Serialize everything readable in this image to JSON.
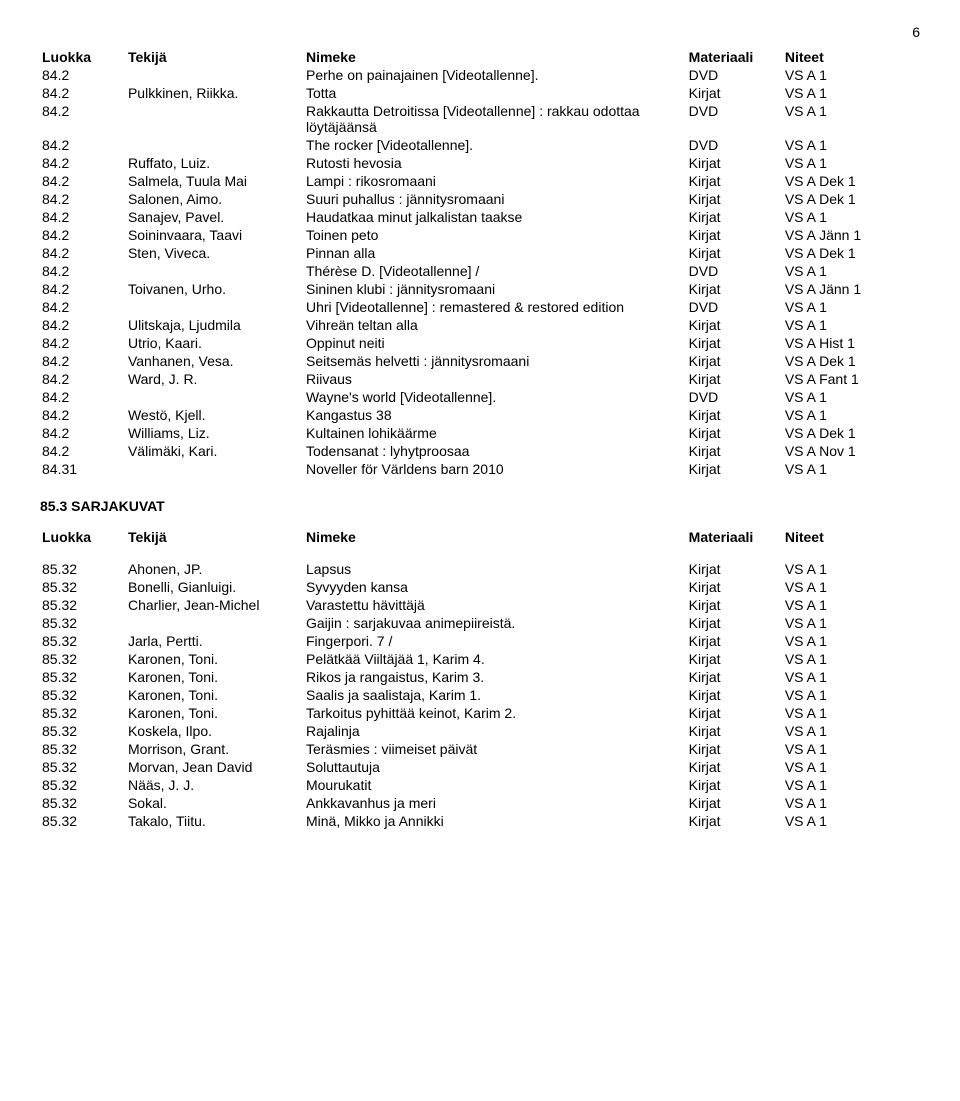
{
  "page_number": "6",
  "headers": {
    "class": "Luokka",
    "author": "Tekijä",
    "title": "Nimeke",
    "material": "Materiaali",
    "notes": "Niteet"
  },
  "table1": [
    [
      "84.2",
      "",
      "Perhe on painajainen [Videotallenne].",
      "DVD",
      "VS A 1"
    ],
    [
      "84.2",
      "Pulkkinen, Riikka.",
      "Totta",
      "Kirjat",
      "VS A 1"
    ],
    [
      "84.2",
      "",
      "Rakkautta Detroitissa [Videotallenne] : rakkau odottaa löytäjäänsä",
      "DVD",
      "VS A 1"
    ],
    [
      "84.2",
      "",
      "The rocker [Videotallenne].",
      "DVD",
      "VS A 1"
    ],
    [
      "84.2",
      "Ruffato, Luiz.",
      "Rutosti hevosia",
      "Kirjat",
      "VS A 1"
    ],
    [
      "84.2",
      "Salmela, Tuula Mai",
      "Lampi : rikosromaani",
      "Kirjat",
      "VS A Dek 1"
    ],
    [
      "84.2",
      "Salonen, Aimo.",
      "Suuri puhallus : jännitysromaani",
      "Kirjat",
      "VS A Dek 1"
    ],
    [
      "84.2",
      "Sanajev, Pavel.",
      "Haudatkaa minut jalkalistan taakse",
      "Kirjat",
      "VS A 1"
    ],
    [
      "84.2",
      "Soininvaara, Taavi",
      "Toinen peto",
      "Kirjat",
      "VS A Jänn 1"
    ],
    [
      "84.2",
      "Sten, Viveca.",
      "Pinnan alla",
      "Kirjat",
      "VS A Dek 1"
    ],
    [
      "84.2",
      "",
      "Thérèse D. [Videotallenne] /",
      "DVD",
      "VS A 1"
    ],
    [
      "84.2",
      "Toivanen, Urho.",
      "Sininen klubi : jännitysromaani",
      "Kirjat",
      "VS A Jänn 1"
    ],
    [
      "84.2",
      "",
      "Uhri [Videotallenne] : remastered & restored edition",
      "DVD",
      "VS A 1"
    ],
    [
      "84.2",
      "Ulitskaja, Ljudmila",
      "Vihreän teltan alla",
      "Kirjat",
      "VS A 1"
    ],
    [
      "84.2",
      "Utrio, Kaari.",
      "Oppinut neiti",
      "Kirjat",
      "VS A Hist 1"
    ],
    [
      "84.2",
      "Vanhanen, Vesa.",
      "Seitsemäs helvetti : jännitysromaani",
      "Kirjat",
      "VS A Dek 1"
    ],
    [
      "84.2",
      "Ward, J. R.",
      "Riivaus",
      "Kirjat",
      "VS A Fant 1"
    ],
    [
      "84.2",
      "",
      "Wayne's world [Videotallenne].",
      "DVD",
      "VS A 1"
    ],
    [
      "84.2",
      "Westö, Kjell.",
      "Kangastus 38",
      "Kirjat",
      "VS A 1"
    ],
    [
      "84.2",
      "Williams, Liz.",
      "Kultainen lohikäärme",
      "Kirjat",
      "VS A Dek 1"
    ],
    [
      "84.2",
      "Välimäki, Kari.",
      "Todensanat : lyhytproosaa",
      "Kirjat",
      "VS A Nov 1"
    ],
    [
      "84.31",
      "",
      "Noveller för Världens barn 2010",
      "Kirjat",
      "VS A 1"
    ]
  ],
  "section_heading": "85.3 SARJAKUVAT",
  "table2": [
    [
      "85.32",
      "Ahonen, JP.",
      "Lapsus",
      "Kirjat",
      "VS A 1"
    ],
    [
      "85.32",
      "Bonelli, Gianluigi.",
      "Syvyyden kansa",
      "Kirjat",
      "VS A 1"
    ],
    [
      "85.32",
      "Charlier, Jean-Michel",
      "Varastettu hävittäjä",
      "Kirjat",
      "VS A 1"
    ],
    [
      "85.32",
      "",
      "Gaijin : sarjakuvaa animepiireistä.",
      "Kirjat",
      "VS A 1"
    ],
    [
      "85.32",
      "Jarla, Pertti.",
      "Fingerpori. 7 /",
      "Kirjat",
      "VS A 1"
    ],
    [
      "85.32",
      "Karonen, Toni.",
      "Pelätkää Viiltäjää 1, Karim 4.",
      "Kirjat",
      "VS A 1"
    ],
    [
      "85.32",
      "Karonen, Toni.",
      "Rikos ja rangaistus, Karim 3.",
      "Kirjat",
      "VS A 1"
    ],
    [
      "85.32",
      "Karonen, Toni.",
      "Saalis ja saalistaja, Karim 1.",
      "Kirjat",
      "VS A 1"
    ],
    [
      "85.32",
      "Karonen, Toni.",
      "Tarkoitus pyhittää keinot, Karim 2.",
      "Kirjat",
      "VS A 1"
    ],
    [
      "85.32",
      "Koskela, Ilpo.",
      "Rajalinja",
      "Kirjat",
      "VS A 1"
    ],
    [
      "85.32",
      "Morrison, Grant.",
      "Teräsmies : viimeiset päivät",
      "Kirjat",
      "VS A 1"
    ],
    [
      "85.32",
      "Morvan, Jean David",
      "Soluttautuja",
      "Kirjat",
      "VS A 1"
    ],
    [
      "85.32",
      "Nääs, J. J.",
      "Mourukatit",
      "Kirjat",
      "VS A 1"
    ],
    [
      "85.32",
      "Sokal.",
      "Ankkavanhus ja meri",
      "Kirjat",
      "VS A 1"
    ],
    [
      "85.32",
      "Takalo, Tiitu.",
      "Minä, Mikko ja Annikki",
      "Kirjat",
      "VS A 1"
    ]
  ]
}
